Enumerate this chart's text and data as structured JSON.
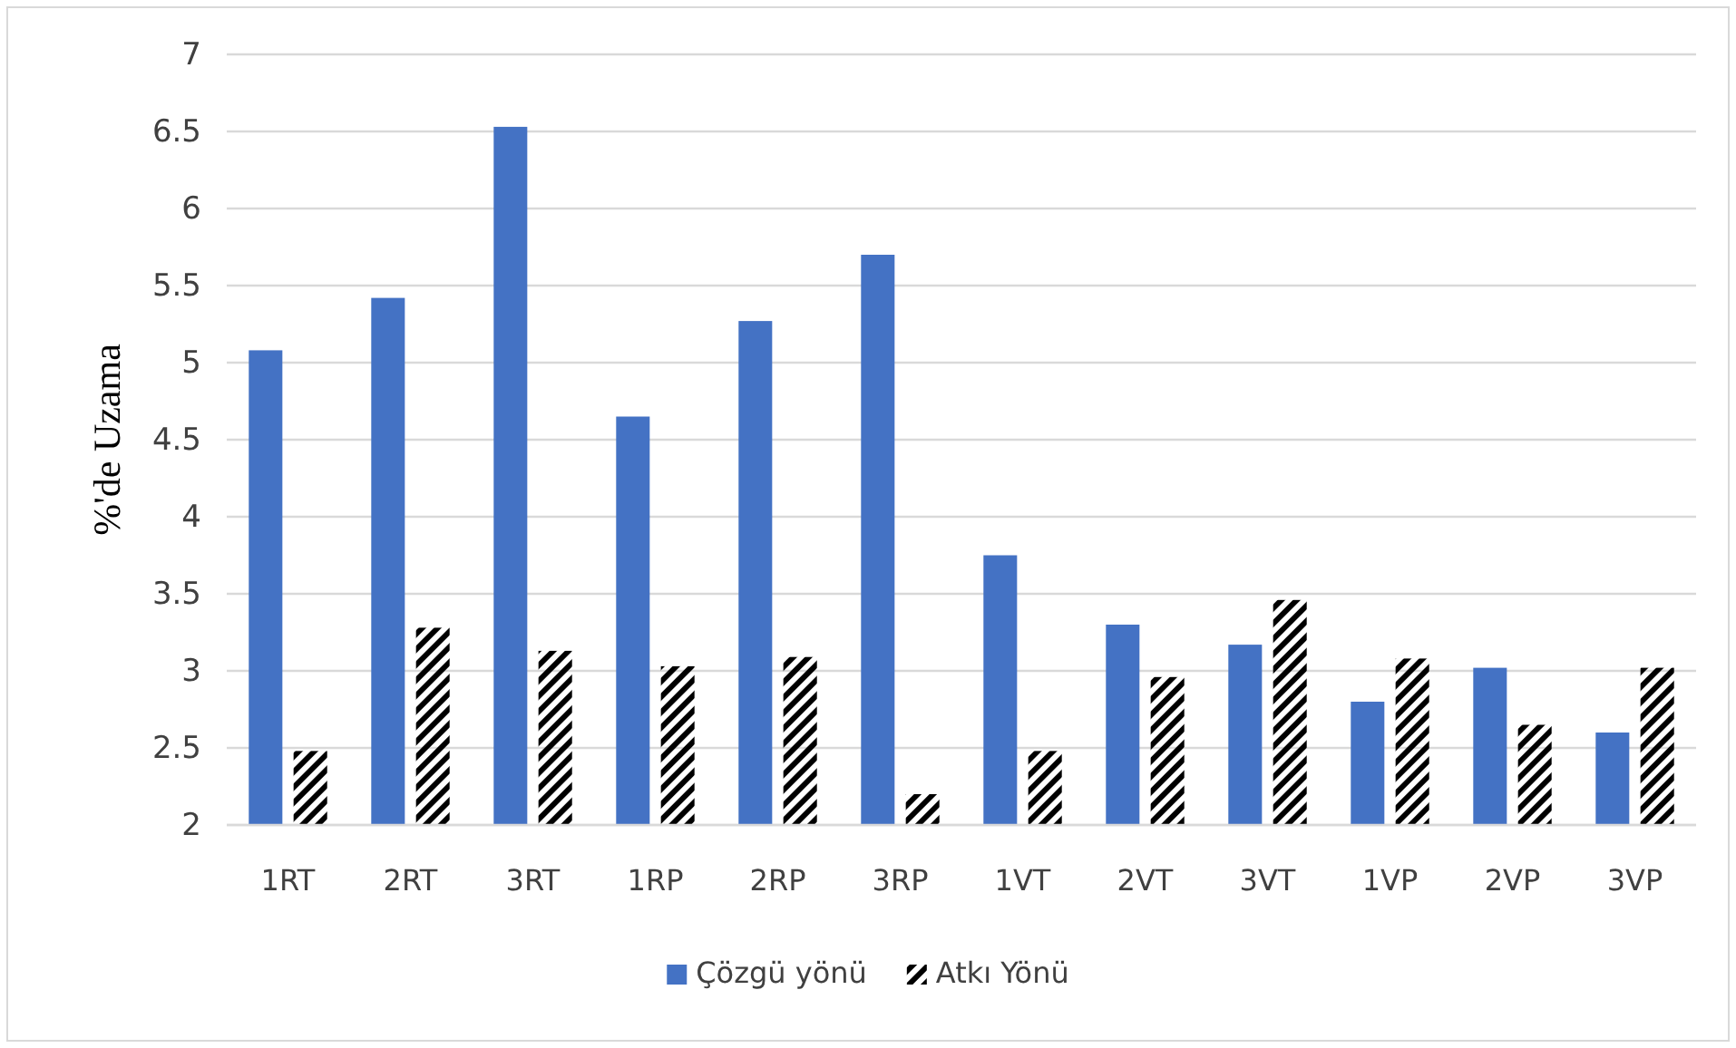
{
  "chart_data": {
    "type": "bar",
    "ylabel": "%'de Uzama",
    "categories": [
      "1RT",
      "2RT",
      "3RT",
      "1RP",
      "2RP",
      "3RP",
      "1VT",
      "2VT",
      "3VT",
      "1VP",
      "2VP",
      "3VP"
    ],
    "series": [
      {
        "name": "Çözgü yönü",
        "color": "#4472c4",
        "values": [
          5.08,
          5.42,
          6.53,
          4.65,
          5.27,
          5.7,
          3.75,
          3.3,
          3.17,
          2.8,
          3.02,
          2.6
        ]
      },
      {
        "name": "Atkı Yönü",
        "color": "#000000",
        "values": [
          2.48,
          3.28,
          3.13,
          3.03,
          3.09,
          2.2,
          2.48,
          2.96,
          3.46,
          3.08,
          2.65,
          3.02
        ]
      }
    ],
    "ylim": [
      2,
      7
    ],
    "yticks": [
      2,
      2.5,
      3,
      3.5,
      4,
      4.5,
      5,
      5.5,
      6,
      6.5,
      7
    ],
    "grid": "y",
    "legend": "bottom"
  }
}
